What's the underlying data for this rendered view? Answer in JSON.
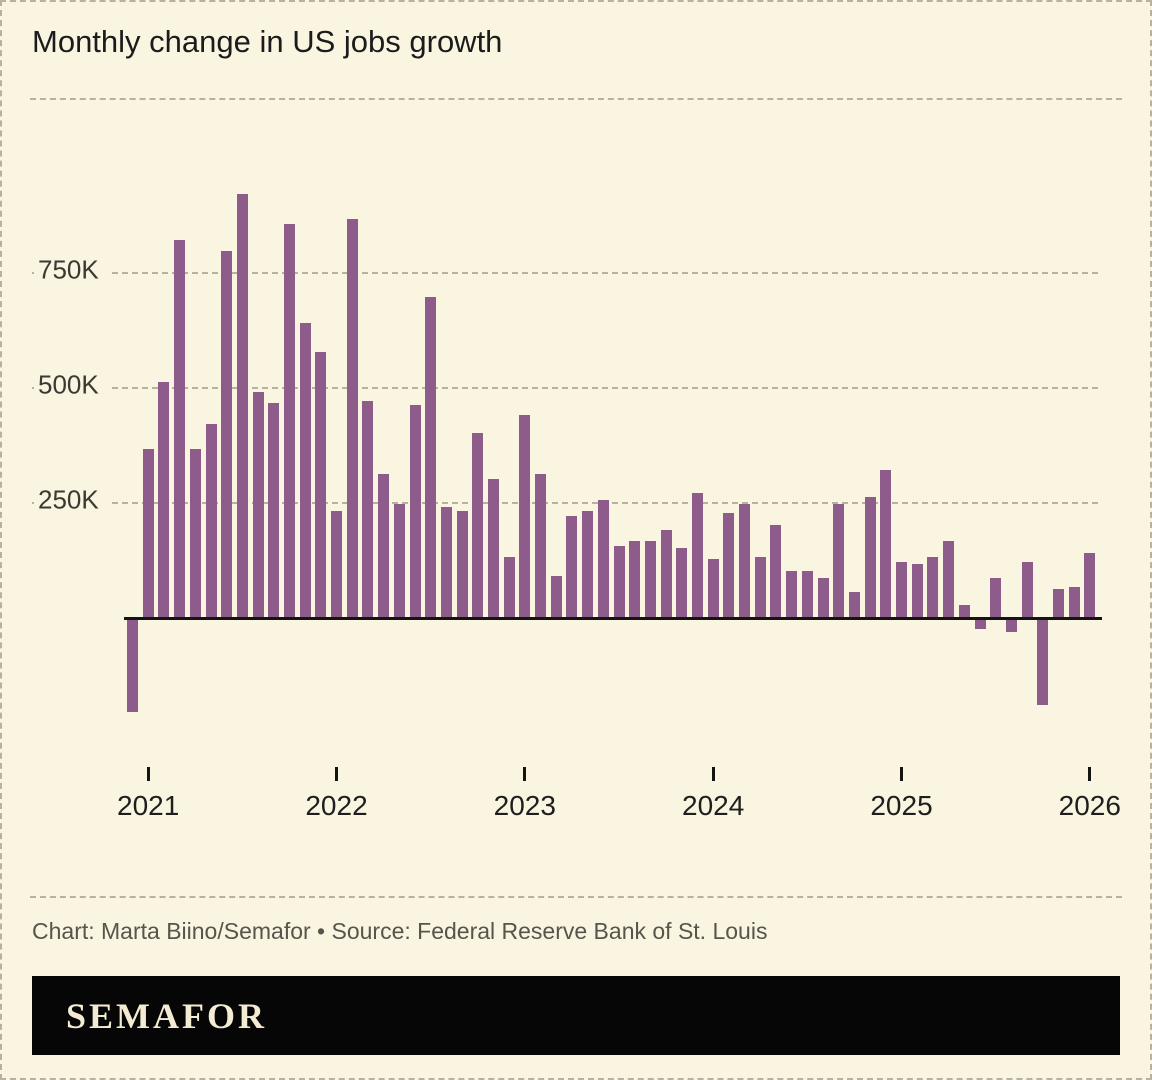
{
  "title": "Monthly change in US jobs growth",
  "credit": "Chart: Marta Biino/Semafor • Source: Federal Reserve Bank of St. Louis",
  "footer": {
    "brand": "SEMAFOR"
  },
  "colors": {
    "background": "#f9f5e1",
    "bar": "#8e5c8b",
    "grid": "#b7b1a0",
    "axis": "#141414",
    "muted_text": "#57554b",
    "footer_bg": "#060606",
    "footer_text": "#f4ecd2"
  },
  "chart_data": {
    "type": "bar",
    "title": "Monthly change in US jobs growth",
    "unit": "thousands of jobs (K)",
    "ylim": [
      -320,
      980
    ],
    "grid": true,
    "legend": "none",
    "y_ticks": [
      {
        "label": "750K",
        "value": 750
      },
      {
        "label": "500K",
        "value": 500
      },
      {
        "label": "250K",
        "value": 250
      }
    ],
    "x_year_labels": [
      "2021",
      "2022",
      "2023",
      "2024",
      "2025",
      "2026"
    ],
    "months": [
      "2020-12",
      "2021-01",
      "2021-02",
      "2021-03",
      "2021-04",
      "2021-05",
      "2021-06",
      "2021-07",
      "2021-08",
      "2021-09",
      "2021-10",
      "2021-11",
      "2021-12",
      "2022-01",
      "2022-02",
      "2022-03",
      "2022-04",
      "2022-05",
      "2022-06",
      "2022-07",
      "2022-08",
      "2022-09",
      "2022-10",
      "2022-11",
      "2022-12",
      "2023-01",
      "2023-02",
      "2023-03",
      "2023-04",
      "2023-05",
      "2023-06",
      "2023-07",
      "2023-08",
      "2023-09",
      "2023-10",
      "2023-11",
      "2023-12",
      "2024-01",
      "2024-02",
      "2024-03",
      "2024-04",
      "2024-05",
      "2024-06",
      "2024-07",
      "2024-08",
      "2024-09",
      "2024-10",
      "2024-11",
      "2024-12",
      "2025-01",
      "2025-02",
      "2025-03",
      "2025-04",
      "2025-05",
      "2025-06",
      "2025-07",
      "2025-08",
      "2025-09",
      "2025-10",
      "2025-11",
      "2025-12",
      "2026-01"
    ],
    "values": [
      -200,
      365,
      510,
      820,
      365,
      420,
      795,
      920,
      490,
      465,
      855,
      640,
      575,
      230,
      865,
      470,
      310,
      245,
      460,
      695,
      240,
      230,
      400,
      300,
      130,
      440,
      310,
      90,
      220,
      230,
      255,
      155,
      165,
      165,
      190,
      150,
      270,
      125,
      225,
      245,
      130,
      200,
      100,
      100,
      85,
      245,
      55,
      260,
      320,
      120,
      115,
      130,
      165,
      25,
      -20,
      85,
      -25,
      120,
      -185,
      60,
      65,
      140
    ]
  }
}
